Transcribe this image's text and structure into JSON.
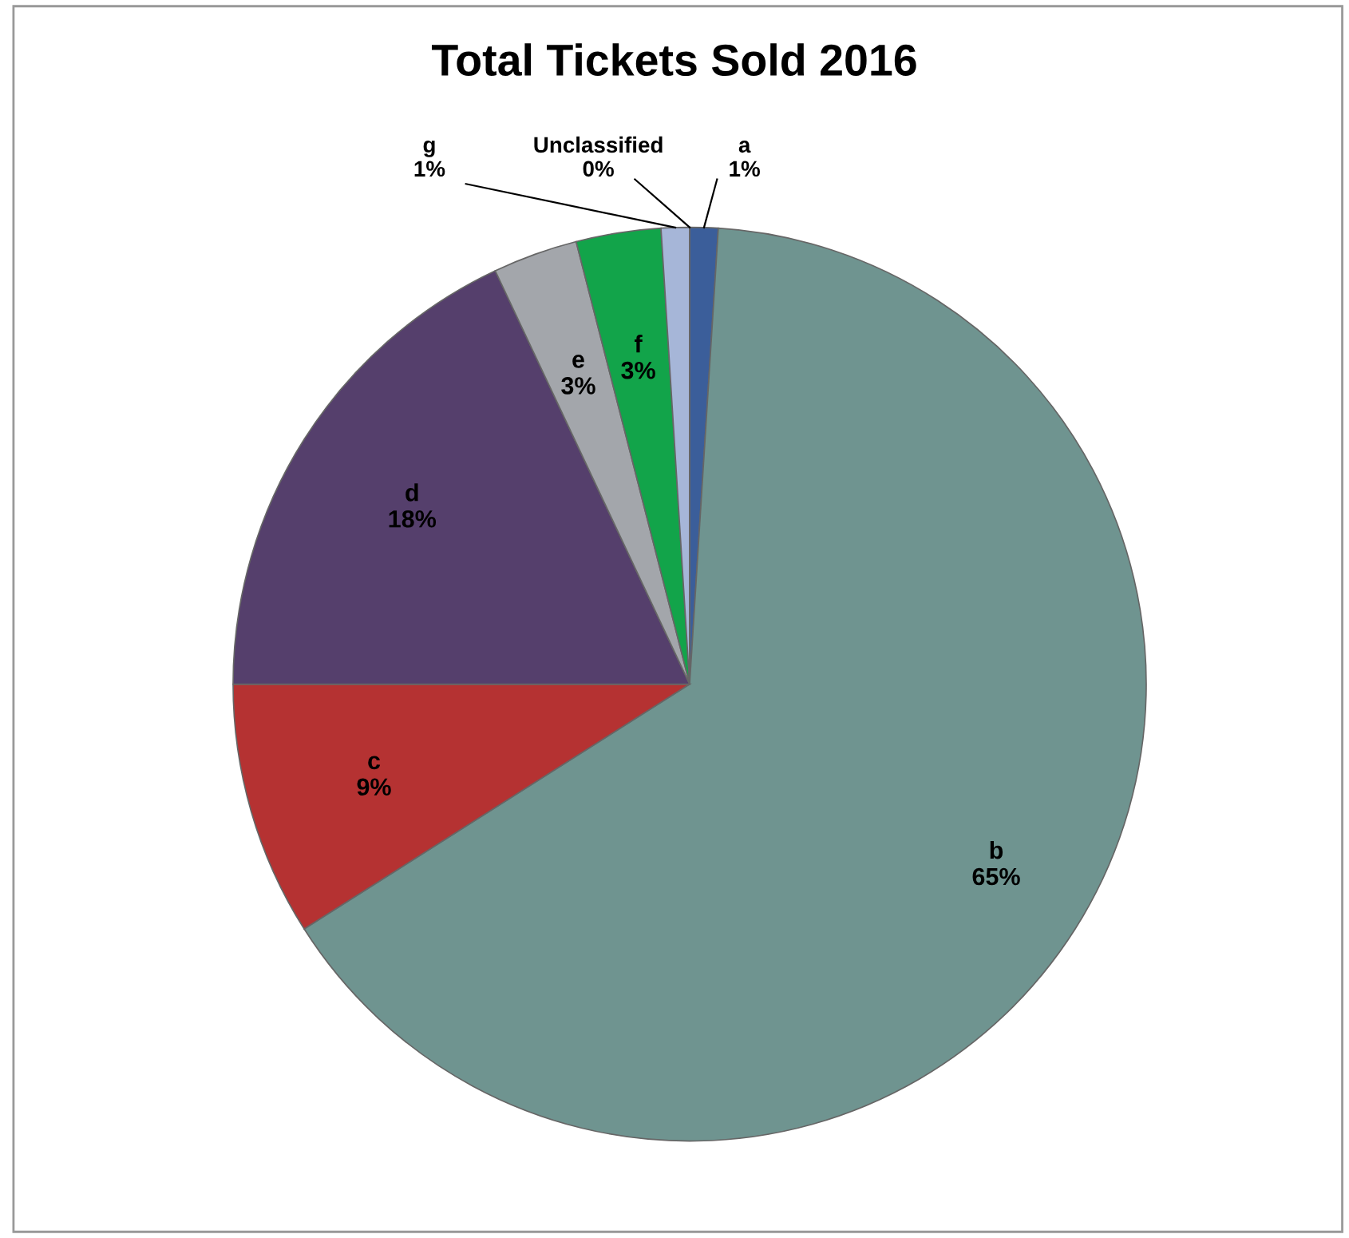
{
  "chart_data": {
    "type": "pie",
    "title": "Total Tickets Sold 2016",
    "categories": [
      "a",
      "b",
      "c",
      "d",
      "e",
      "f",
      "g",
      "Unclassified"
    ],
    "values": [
      1,
      65,
      9,
      18,
      3,
      3,
      1,
      0
    ],
    "value_labels": [
      "1%",
      "65%",
      "9%",
      "18%",
      "3%",
      "3%",
      "1%",
      "0%"
    ],
    "colors": [
      "#3b5e9a",
      "#6f9490",
      "#b53232",
      "#553f6c",
      "#a3a6ab",
      "#12a44a",
      "#a6b6d8",
      "#dcdcdc"
    ],
    "legend": false
  }
}
